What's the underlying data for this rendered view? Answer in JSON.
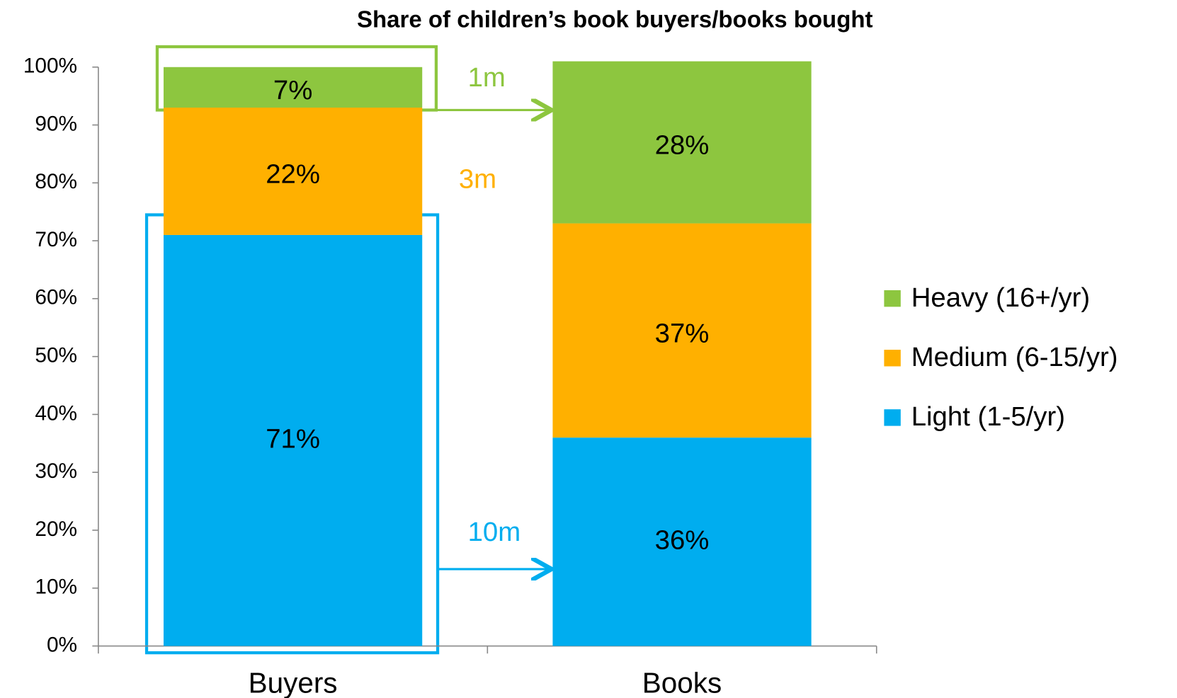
{
  "chart_data": {
    "type": "bar",
    "stacked": true,
    "title": "Share of children’s book buyers/books bought",
    "categories": [
      "Buyers",
      "Books"
    ],
    "series": [
      {
        "name": "Light (1-5/yr)",
        "color": "#00adef",
        "values": [
          71,
          36
        ],
        "value_labels": [
          "71%",
          "36%"
        ]
      },
      {
        "name": "Medium (6-15/yr)",
        "color": "#ffb000",
        "values": [
          22,
          37
        ],
        "value_labels": [
          "22%",
          "37%"
        ]
      },
      {
        "name": "Heavy (16+/yr)",
        "color": "#8dc63f",
        "values": [
          7,
          28
        ],
        "value_labels": [
          "7%",
          "28%"
        ]
      }
    ],
    "ylim": [
      0,
      100
    ],
    "yticks": [
      {
        "value": 0,
        "label": "0%"
      },
      {
        "value": 10,
        "label": "10%"
      },
      {
        "value": 20,
        "label": "20%"
      },
      {
        "value": 30,
        "label": "30%"
      },
      {
        "value": 40,
        "label": "40%"
      },
      {
        "value": 50,
        "label": "50%"
      },
      {
        "value": 60,
        "label": "60%"
      },
      {
        "value": 70,
        "label": "70%"
      },
      {
        "value": 80,
        "label": "80%"
      },
      {
        "value": 90,
        "label": "90%"
      },
      {
        "value": 100,
        "label": "100%"
      }
    ],
    "legend": "right",
    "annotations": [
      {
        "text": "1m",
        "color": "#8dc63f"
      },
      {
        "text": "3m",
        "color": "#ffb000"
      },
      {
        "text": "10m",
        "color": "#00adef"
      }
    ]
  }
}
